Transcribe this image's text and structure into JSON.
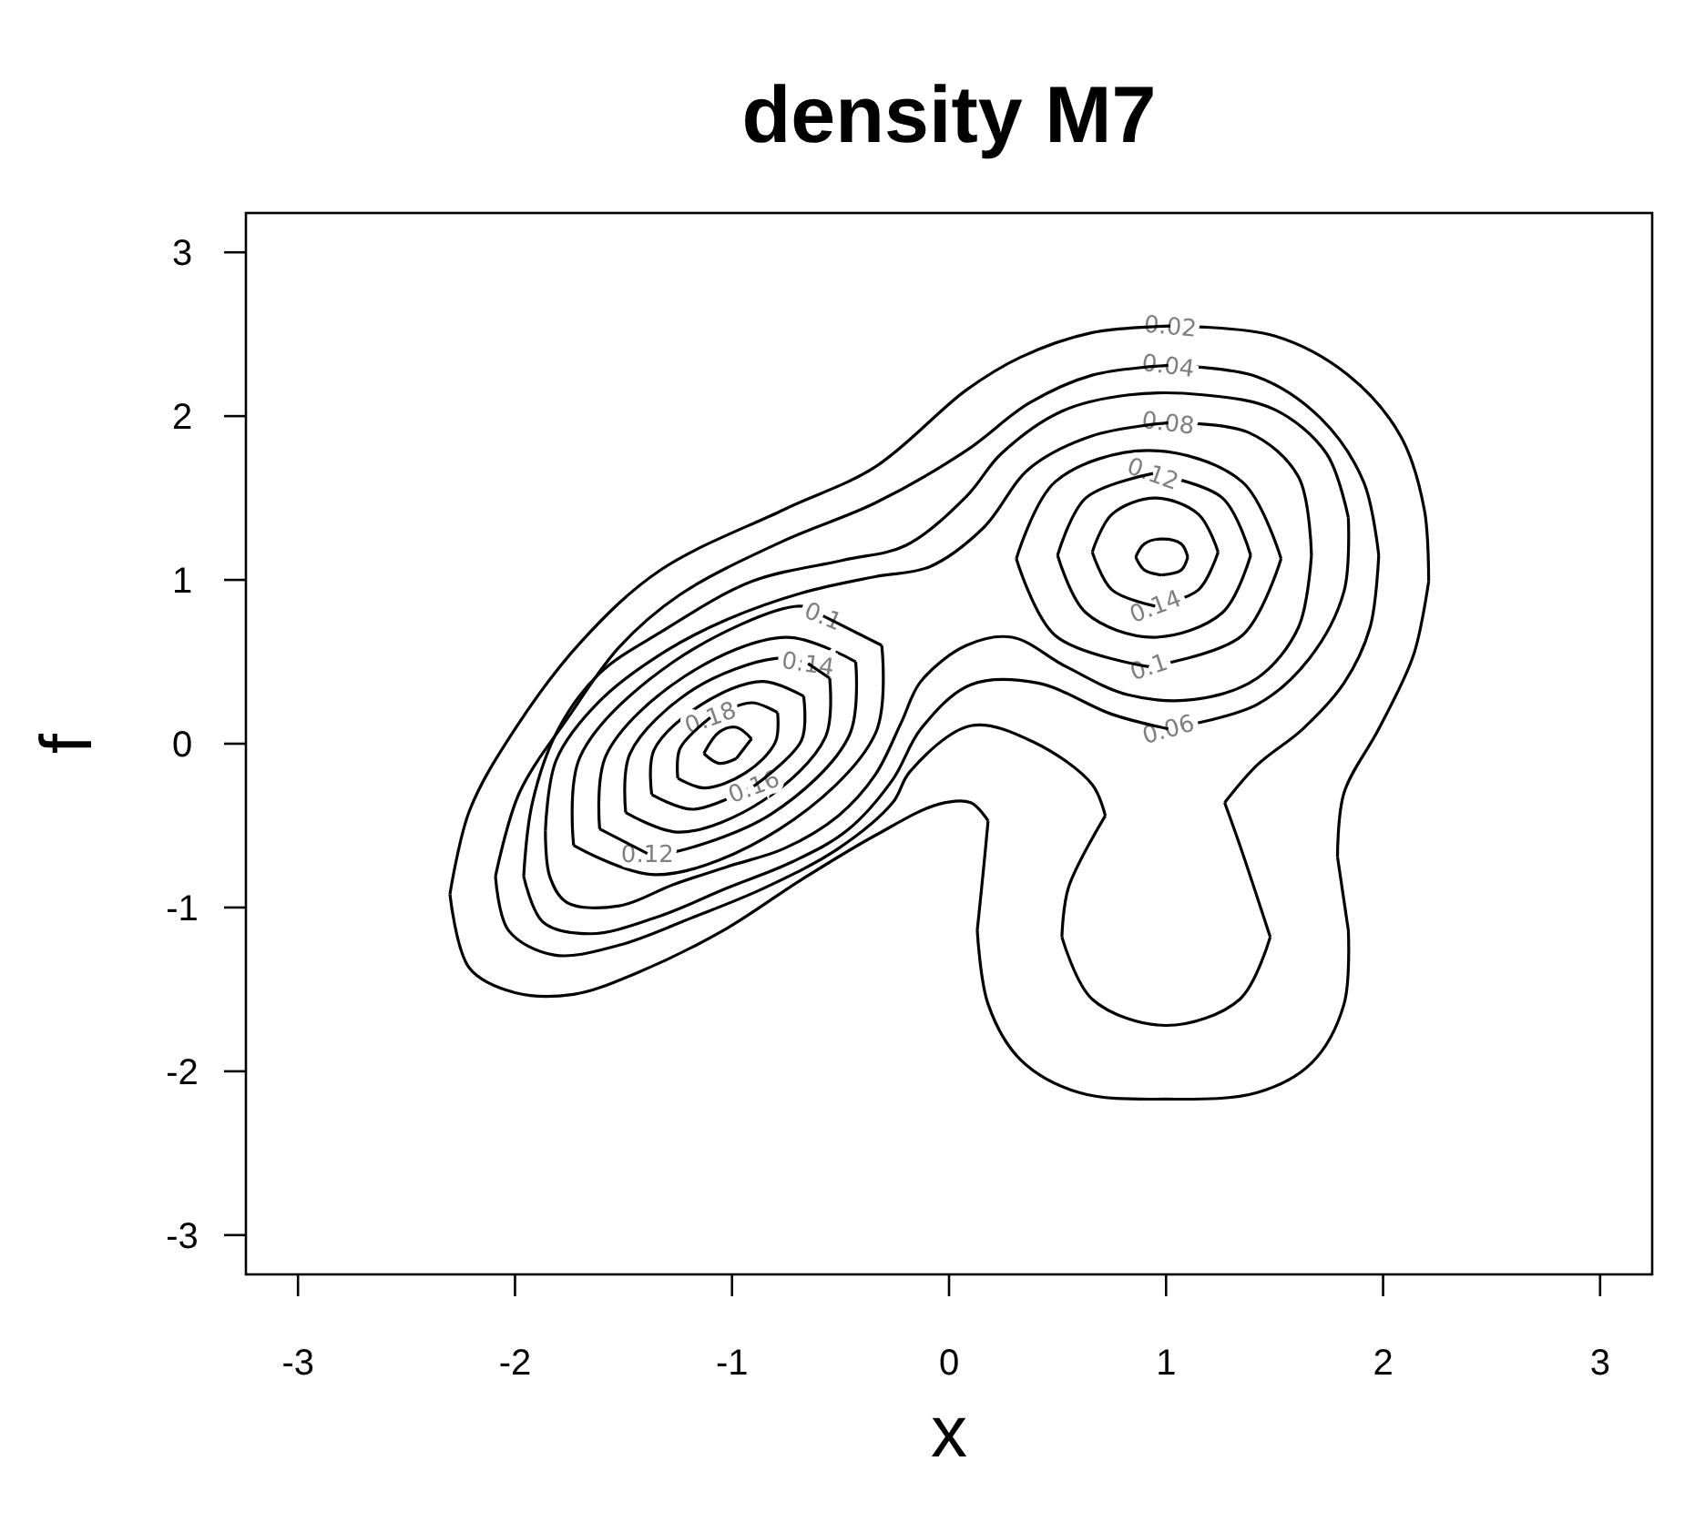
{
  "chart_data": {
    "type": "line",
    "title": "density M7",
    "xlabel": "x",
    "ylabel": "f",
    "xlim": [
      -3.24,
      3.24
    ],
    "ylim": [
      -3.24,
      3.24
    ],
    "xticks": [
      -3,
      -2,
      -1,
      0,
      1,
      2,
      3
    ],
    "yticks": [
      -3,
      -2,
      -1,
      0,
      1,
      2,
      3
    ],
    "grid": false,
    "legend": false,
    "line_style": "solid",
    "marker": "none",
    "series": [
      {
        "name": "0.02",
        "color": "#000000",
        "x": [
          1.02,
          1.5,
          1.84,
          2.08,
          2.19,
          2.21
        ],
        "values": [
          2.55,
          2.49,
          2.25,
          1.88,
          1.43,
          0.99
        ]
      },
      {
        "color": "#000000",
        "x": [
          2.21,
          2.14,
          1.98,
          1.82,
          1.79
        ],
        "values": [
          0.99,
          0.54,
          0.09,
          -0.3,
          -0.69
        ]
      },
      {
        "color": "#000000",
        "x": [
          1.79,
          1.84
        ],
        "values": [
          -0.69,
          -1.14
        ]
      },
      {
        "color": "#000000",
        "x": [
          1.84,
          1.82,
          1.67,
          1.42,
          1.0,
          0.6,
          0.33,
          0.18,
          0.13
        ],
        "values": [
          -1.14,
          -1.59,
          -1.95,
          -2.13,
          -2.17,
          -2.13,
          -1.93,
          -1.59,
          -1.14
        ]
      },
      {
        "color": "#000000",
        "x": [
          0.13,
          0.16,
          0.18
        ],
        "values": [
          -1.14,
          -0.75,
          -0.47
        ]
      },
      {
        "color": "#000000",
        "x": [
          0.18,
          0.1,
          -0.05,
          -0.34,
          -0.68,
          -1.04,
          -1.44,
          -1.73,
          -2.0,
          -2.21,
          -2.3
        ],
        "values": [
          -0.47,
          -0.36,
          -0.37,
          -0.56,
          -0.83,
          -1.14,
          -1.4,
          -1.53,
          -1.52,
          -1.37,
          -0.92
        ]
      },
      {
        "color": "#000000",
        "x": [
          -2.3,
          -2.21,
          -2.0,
          -1.69,
          -1.33,
          -0.76,
          -0.34,
          0.08,
          0.33,
          0.66,
          1.02
        ],
        "values": [
          -0.92,
          -0.41,
          0.09,
          0.63,
          1.06,
          1.43,
          1.69,
          2.16,
          2.36,
          2.51,
          2.55
        ]
      },
      {
        "name": "0.04",
        "color": "#000000",
        "x": [
          1.01,
          1.42,
          1.71,
          1.91,
          1.98
        ],
        "values": [
          2.31,
          2.24,
          1.99,
          1.6,
          1.15
        ]
      },
      {
        "color": "#000000",
        "x": [
          1.98,
          1.94,
          1.82,
          1.63,
          1.42,
          1.27
        ],
        "values": [
          1.15,
          0.71,
          0.37,
          0.09,
          -0.13,
          -0.36
        ]
      },
      {
        "color": "#000000",
        "x": [
          1.27,
          1.34,
          1.48
        ],
        "values": [
          -0.36,
          -0.62,
          -1.18
        ]
      },
      {
        "color": "#000000",
        "x": [
          1.48,
          1.34,
          1.0,
          0.66,
          0.52
        ],
        "values": [
          -1.18,
          -1.56,
          -1.72,
          -1.56,
          -1.18
        ]
      },
      {
        "color": "#000000",
        "x": [
          0.52,
          0.55,
          0.72
        ],
        "values": [
          -1.18,
          -0.88,
          -0.44
        ]
      },
      {
        "color": "#000000",
        "x": [
          0.72,
          0.66,
          0.39,
          0.1,
          -0.18,
          -0.26,
          -0.51,
          -0.85,
          -1.18,
          -1.52,
          -1.82,
          -2.03,
          -2.09
        ],
        "values": [
          -0.44,
          -0.25,
          0.01,
          0.11,
          -0.17,
          -0.36,
          -0.64,
          -0.88,
          -1.06,
          -1.23,
          -1.29,
          -1.14,
          -0.81
        ]
      },
      {
        "color": "#000000",
        "x": [
          -2.09,
          -1.98,
          -1.75,
          -1.52,
          -1.24,
          -0.76,
          -0.34,
          0.08,
          0.37,
          0.66,
          1.01
        ],
        "values": [
          -0.81,
          -0.3,
          0.17,
          0.59,
          0.91,
          1.24,
          1.47,
          1.79,
          2.08,
          2.25,
          2.31
        ]
      },
      {
        "name": "0.06",
        "color": "#000000",
        "x": [
          1.01,
          1.42,
          1.66,
          1.82,
          1.84
        ],
        "values": [
          0.09,
          0.24,
          0.52,
          0.93,
          1.38
        ]
      },
      {
        "color": "#000000",
        "x": [
          1.84,
          1.74,
          1.5,
          1.17,
          0.83,
          0.52,
          0.24,
          0.08,
          -0.2,
          -0.49,
          -0.91,
          -1.33,
          -1.61,
          -1.8,
          -1.92,
          -1.96
        ],
        "values": [
          1.38,
          1.77,
          2.04,
          2.13,
          2.13,
          2.03,
          1.77,
          1.51,
          1.21,
          1.12,
          0.99,
          0.68,
          0.43,
          0.09,
          -0.36,
          -0.81
        ]
      },
      {
        "color": "#000000",
        "x": [
          -1.96,
          -1.87,
          -1.65,
          -1.35,
          -1.02,
          -0.72,
          -0.47,
          -0.26,
          -0.13,
          0.1,
          0.41,
          0.75,
          1.01
        ],
        "values": [
          -0.81,
          -1.09,
          -1.16,
          -1.06,
          -0.88,
          -0.72,
          -0.53,
          -0.22,
          0.09,
          0.36,
          0.37,
          0.18,
          0.09
        ]
      },
      {
        "name": "0.08",
        "color": "#000000",
        "x": [
          1.01,
          1.38,
          1.61,
          1.67
        ],
        "values": [
          1.96,
          1.9,
          1.63,
          1.15
        ]
      },
      {
        "color": "#000000",
        "x": [
          1.67,
          1.61,
          1.42,
          1.13,
          0.82,
          0.54,
          0.29,
          0.08,
          -0.13,
          -0.22,
          -0.34,
          -0.51,
          -0.76,
          -1.02,
          -1.27,
          -1.52,
          -1.76,
          -1.84,
          -1.86
        ],
        "values": [
          1.15,
          0.71,
          0.4,
          0.27,
          0.3,
          0.47,
          0.65,
          0.6,
          0.38,
          0.13,
          -0.19,
          -0.44,
          -0.64,
          -0.75,
          -0.86,
          -0.99,
          -0.97,
          -0.81,
          -0.53
        ]
      },
      {
        "color": "#000000",
        "x": [
          -1.86,
          -1.81,
          -1.61,
          -1.3,
          -1.02,
          -0.68,
          -0.34,
          -0.09,
          0.16,
          0.37,
          0.66,
          1.01
        ],
        "values": [
          -0.53,
          -0.1,
          0.26,
          0.57,
          0.76,
          0.92,
          1.02,
          1.08,
          1.32,
          1.68,
          1.88,
          1.96
        ]
      },
      {
        "name": "0.1",
        "color": "#000000",
        "x": [
          -0.58,
          -0.69,
          -1.27,
          -1.7,
          -1.73
        ],
        "values": [
          0.78,
          0.84,
          0.5,
          -0.08,
          -0.62
        ]
      },
      {
        "color": "#000000",
        "x": [
          -1.73,
          -1.35,
          -0.78,
          -0.34,
          -0.31
        ],
        "values": [
          -0.62,
          -0.8,
          -0.52,
          0.06,
          0.6
        ]
      },
      {
        "color": "#000000",
        "x": [
          -0.31,
          -0.58
        ],
        "values": [
          0.6,
          0.78
        ]
      },
      {
        "name": "0.12",
        "color": "#000000",
        "x": [
          -1.39,
          -1.3,
          -0.82,
          -0.46,
          -0.43
        ],
        "values": [
          -0.67,
          -0.67,
          -0.43,
          0.05,
          0.5
        ]
      },
      {
        "color": "#000000",
        "x": [
          -0.43,
          -0.75,
          -1.22,
          -1.58,
          -1.61
        ],
        "values": [
          0.5,
          0.65,
          0.41,
          -0.07,
          -0.52
        ]
      },
      {
        "color": "#000000",
        "x": [
          -1.61,
          -1.39
        ],
        "values": [
          -0.52,
          -0.67
        ]
      },
      {
        "name": "0.14",
        "color": "#000000",
        "x": [
          -0.65,
          -0.8,
          -1.18,
          -1.47,
          -1.49
        ],
        "values": [
          0.49,
          0.52,
          0.33,
          -0.06,
          -0.42
        ]
      },
      {
        "color": "#000000",
        "x": [
          -1.49,
          -1.24,
          -0.86,
          -0.57,
          -0.55
        ],
        "values": [
          -0.42,
          -0.54,
          -0.35,
          0.04,
          0.4
        ]
      },
      {
        "color": "#000000",
        "x": [
          -0.55,
          -0.65
        ],
        "values": [
          0.4,
          0.49
        ]
      },
      {
        "name": "0.16",
        "color": "#000000",
        "x": [
          -0.9,
          -1.18,
          -1.37
        ],
        "values": [
          -0.26,
          -0.4,
          -0.31
        ]
      },
      {
        "color": "#000000",
        "x": [
          -1.37,
          -1.36,
          -1.14,
          -0.86,
          -0.67
        ],
        "values": [
          -0.31,
          -0.04,
          0.24,
          0.38,
          0.29
        ]
      },
      {
        "color": "#000000",
        "x": [
          -0.67,
          -0.68,
          -0.9
        ],
        "values": [
          0.29,
          0.02,
          -0.26
        ]
      },
      {
        "name": "0.18",
        "color": "#000000",
        "x": [
          -1.1,
          -0.91,
          -0.79
        ],
        "values": [
          0.16,
          0.25,
          0.19
        ]
      },
      {
        "color": "#000000",
        "x": [
          -0.79,
          -0.8,
          -0.94,
          -1.13,
          -1.25
        ],
        "values": [
          0.19,
          0.01,
          -0.18,
          -0.27,
          -0.21
        ]
      },
      {
        "color": "#000000",
        "x": [
          -1.25,
          -1.24,
          -1.1
        ],
        "values": [
          -0.21,
          -0.03,
          0.16
        ]
      },
      {
        "color": "#000000",
        "x": [
          -0.91,
          -0.98,
          -1.06,
          -1.13
        ],
        "values": [
          0.03,
          0.1,
          0.07,
          -0.06
        ]
      },
      {
        "color": "#000000",
        "x": [
          -1.13,
          -1.06,
          -0.98
        ],
        "values": [
          -0.06,
          -0.12,
          -0.09
        ]
      },
      {
        "color": "#000000",
        "x": [
          -0.98,
          -0.91
        ],
        "values": [
          -0.09,
          0.03
        ]
      },
      {
        "name": "0.1",
        "color": "#000000",
        "x": [
          0.92,
          1.35,
          1.53
        ],
        "values": [
          0.47,
          0.66,
          1.13
        ]
      },
      {
        "color": "#000000",
        "x": [
          1.53,
          1.35,
          0.92,
          0.49,
          0.31
        ],
        "values": [
          1.13,
          1.6,
          1.79,
          1.6,
          1.13
        ]
      },
      {
        "color": "#000000",
        "x": [
          0.31,
          0.49,
          0.92
        ],
        "values": [
          1.13,
          0.66,
          0.47
        ]
      },
      {
        "name": "0.12",
        "color": "#000000",
        "x": [
          0.94,
          1.26,
          1.39
        ],
        "values": [
          1.65,
          1.5,
          1.15
        ]
      },
      {
        "color": "#000000",
        "x": [
          1.39,
          1.26,
          0.94,
          0.63,
          0.5
        ],
        "values": [
          1.15,
          0.8,
          0.65,
          0.8,
          1.15
        ]
      },
      {
        "color": "#000000",
        "x": [
          0.5,
          0.63,
          0.94
        ],
        "values": [
          1.15,
          1.5,
          1.65
        ]
      },
      {
        "name": "0.14",
        "color": "#000000",
        "x": [
          0.95,
          1.15,
          1.24
        ],
        "values": [
          0.84,
          0.94,
          1.17
        ]
      },
      {
        "color": "#000000",
        "x": [
          1.24,
          1.15,
          0.95,
          0.75,
          0.66
        ],
        "values": [
          1.17,
          1.4,
          1.5,
          1.4,
          1.17
        ]
      },
      {
        "color": "#000000",
        "x": [
          0.66,
          0.75,
          0.95
        ],
        "values": [
          1.17,
          0.94,
          0.84
        ]
      },
      {
        "color": "#000000",
        "x": [
          1.1,
          1.07,
          0.98,
          0.9,
          0.86
        ],
        "values": [
          1.14,
          1.22,
          1.25,
          1.22,
          1.14
        ]
      },
      {
        "color": "#000000",
        "x": [
          0.86,
          0.9,
          0.98
        ],
        "values": [
          1.14,
          1.06,
          1.03
        ]
      },
      {
        "color": "#000000",
        "x": [
          0.98,
          1.07,
          1.1
        ],
        "values": [
          1.03,
          1.06,
          1.14
        ]
      }
    ]
  }
}
